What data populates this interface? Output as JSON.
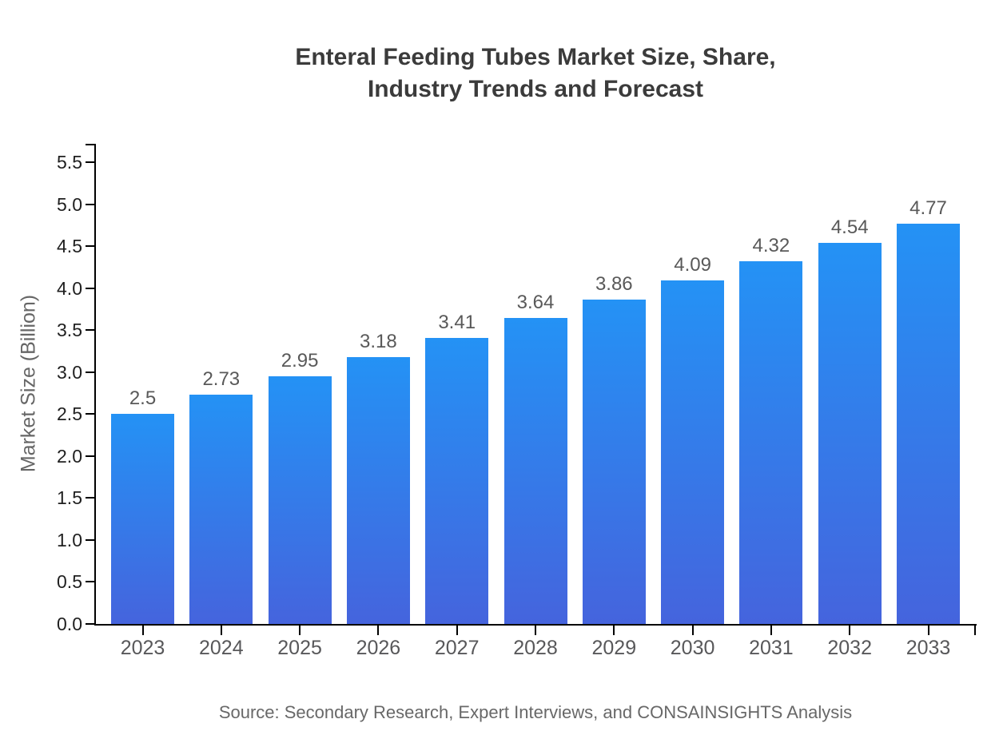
{
  "chart_data": {
    "type": "bar",
    "title_lines": [
      "Enteral Feeding Tubes Market Size, Share,",
      "Industry Trends and Forecast"
    ],
    "ylabel": "Market Size (Billion)",
    "xlabel": "",
    "categories": [
      "2023",
      "2024",
      "2025",
      "2026",
      "2027",
      "2028",
      "2029",
      "2030",
      "2031",
      "2032",
      "2033"
    ],
    "values": [
      2.5,
      2.73,
      2.95,
      3.18,
      3.41,
      3.64,
      3.86,
      4.09,
      4.32,
      4.54,
      4.77
    ],
    "value_labels": [
      "2.5",
      "2.73",
      "2.95",
      "3.18",
      "3.41",
      "3.64",
      "3.86",
      "4.09",
      "4.32",
      "4.54",
      "4.77"
    ],
    "yticks": [
      0.0,
      0.5,
      1.0,
      1.5,
      2.0,
      2.5,
      3.0,
      3.5,
      4.0,
      4.5,
      5.0,
      5.5
    ],
    "ytick_labels": [
      "0.0",
      "0.5",
      "1.0",
      "1.5",
      "2.0",
      "2.5",
      "3.0",
      "3.5",
      "4.0",
      "4.5",
      "5.0",
      "5.5"
    ],
    "ylim": [
      0,
      5.72
    ],
    "grid": false,
    "legend": "none",
    "source_note": "Source: Secondary Research, Expert Interviews, and CONSAINSIGHTS Analysis",
    "colors": {
      "bar_gradient_top": "#2492f5",
      "bar_gradient_bottom": "#4564dd",
      "axis": "#000000",
      "title_text": "#3b3b3b",
      "tick_text": "#1f1f1f",
      "category_text": "#58585a",
      "value_text": "#595959",
      "axis_title_text": "#666666",
      "source_text": "#686868",
      "background": "#ffffff"
    }
  }
}
